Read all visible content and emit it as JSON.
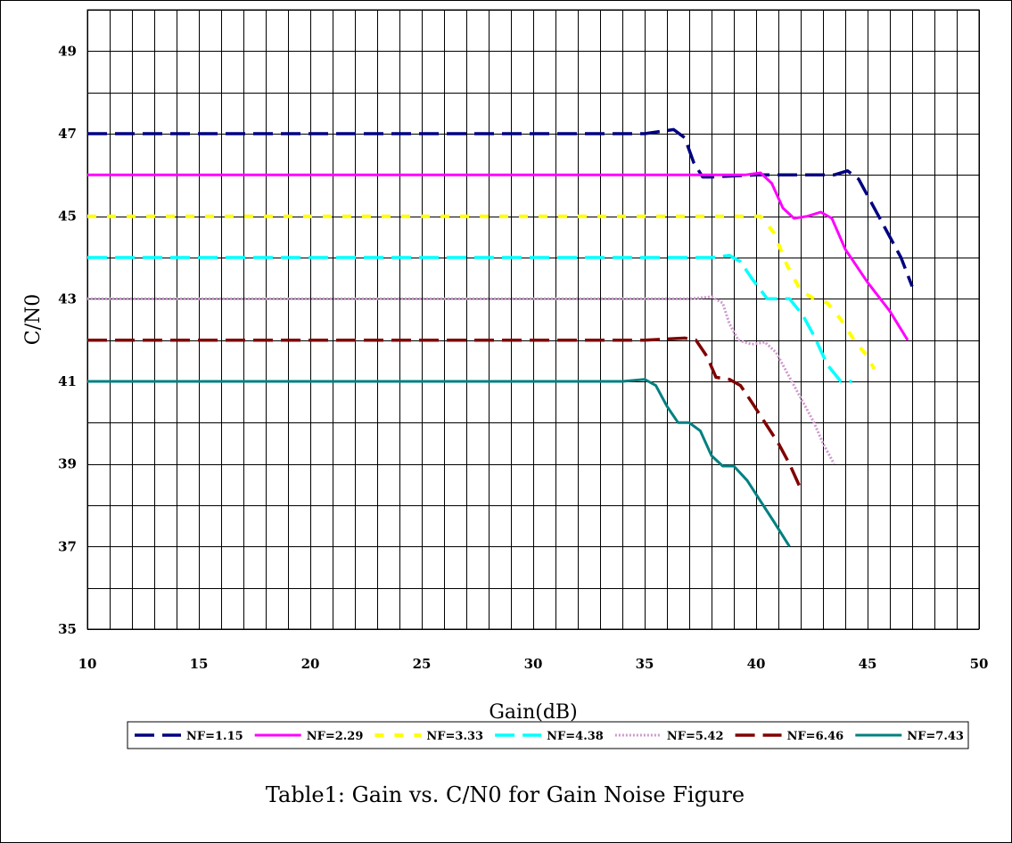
{
  "chart_data": {
    "type": "line",
    "title": "Table1: Gain vs. C/N0 for Gain Noise Figure",
    "xlabel": "Gain(dB)",
    "ylabel": "C/N0",
    "xlim": [
      10,
      50
    ],
    "ylim": [
      35,
      50
    ],
    "xticks": [
      10,
      15,
      20,
      25,
      30,
      35,
      40,
      45,
      50
    ],
    "yticks": [
      35,
      37,
      39,
      41,
      43,
      45,
      47,
      49
    ],
    "grid": true,
    "legend_position": "bottom",
    "series": [
      {
        "name": "NF=1.15",
        "color": "#000080",
        "dash": "long-dash",
        "x": [
          10,
          20,
          28,
          35,
          36.3,
          36.8,
          37.2,
          37.6,
          38.0,
          40.0,
          42.0,
          43.5,
          44.1,
          44.6,
          45.2,
          45.8,
          46.5,
          47.0
        ],
        "y": [
          47,
          47,
          47,
          47,
          47.1,
          46.9,
          46.3,
          45.95,
          45.95,
          46.0,
          46.0,
          46.0,
          46.1,
          45.9,
          45.3,
          44.7,
          44.0,
          43.3
        ]
      },
      {
        "name": "NF=2.29",
        "color": "#FF00FF",
        "dash": "solid",
        "x": [
          10,
          20,
          30,
          38,
          39.5,
          40.2,
          40.7,
          41.2,
          41.7,
          42.3,
          42.9,
          43.4,
          44.0,
          45.0,
          46.0,
          46.8
        ],
        "y": [
          46,
          46,
          46,
          46,
          46.0,
          46.05,
          45.8,
          45.2,
          44.95,
          45.0,
          45.1,
          44.95,
          44.2,
          43.4,
          42.7,
          42.0
        ]
      },
      {
        "name": "NF=3.33",
        "color": "#FFFF00",
        "dash": "dash",
        "x": [
          10,
          20,
          30,
          38,
          40.2,
          40.8,
          41.4,
          42.0,
          42.6,
          43.2,
          43.8,
          44.4,
          45.0,
          45.3
        ],
        "y": [
          45,
          45,
          45,
          45,
          45.0,
          44.6,
          43.8,
          43.2,
          43.0,
          42.9,
          42.5,
          42.0,
          41.6,
          41.3
        ]
      },
      {
        "name": "NF=4.38",
        "color": "#00FFFF",
        "dash": "long-dash",
        "x": [
          10,
          20,
          30,
          38,
          38.8,
          39.3,
          39.8,
          40.5,
          41.5,
          42.1,
          42.6,
          43.2,
          43.8,
          44.3
        ],
        "y": [
          44,
          44,
          44,
          44,
          44.05,
          43.9,
          43.5,
          43.0,
          43.0,
          42.6,
          42.1,
          41.4,
          41.0,
          41.0
        ]
      },
      {
        "name": "NF=5.42",
        "color": "#CC99CC",
        "dash": "dotted",
        "x": [
          10,
          20,
          30,
          37,
          38.0,
          38.5,
          38.8,
          39.2,
          39.8,
          40.4,
          40.9,
          41.4,
          42.0,
          42.6,
          43.0,
          43.5
        ],
        "y": [
          43,
          43,
          43,
          43,
          43.05,
          42.9,
          42.4,
          42.0,
          41.9,
          41.95,
          41.7,
          41.2,
          40.6,
          40.0,
          39.5,
          39.0
        ]
      },
      {
        "name": "NF=6.46",
        "color": "#800000",
        "dash": "long-dash",
        "x": [
          10,
          20,
          28,
          35,
          36.8,
          37.3,
          37.8,
          38.2,
          38.8,
          39.3,
          39.8,
          40.4,
          41.0,
          41.5,
          42.0
        ],
        "y": [
          42,
          42,
          42,
          42,
          42.05,
          42.0,
          41.6,
          41.1,
          41.05,
          40.9,
          40.5,
          40.0,
          39.5,
          39.0,
          38.4
        ]
      },
      {
        "name": "NF=7.43",
        "color": "#008080",
        "dash": "solid",
        "x": [
          10,
          20,
          30,
          34,
          35.0,
          35.5,
          36.0,
          36.5,
          37.0,
          37.5,
          38.0,
          38.5,
          39.0,
          39.6,
          40.2,
          40.8,
          41.5
        ],
        "y": [
          41,
          41,
          41,
          41,
          41.05,
          40.9,
          40.4,
          40.0,
          40.0,
          39.8,
          39.2,
          38.95,
          38.95,
          38.6,
          38.1,
          37.6,
          37.0
        ]
      }
    ]
  },
  "caption": "Table1: Gain vs. C/N0 for Gain Noise Figure"
}
